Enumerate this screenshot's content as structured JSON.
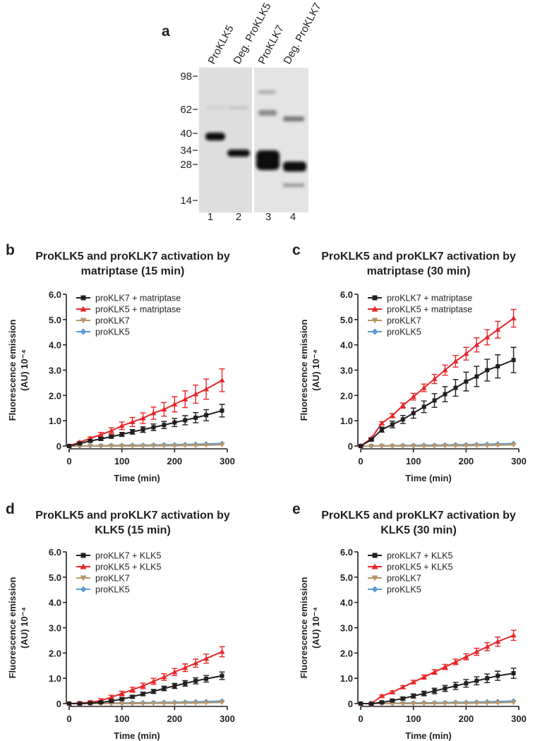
{
  "gel": {
    "panel": "a",
    "lanes": [
      "ProKLK5",
      "Deg. ProKLK5",
      "ProKLK7",
      "Deg. ProKLK7"
    ],
    "markers": [
      "98",
      "62",
      "40",
      "34",
      "28",
      "14"
    ],
    "lane_numbers": [
      "1",
      "2",
      "3",
      "4"
    ]
  },
  "chart_data": [
    {
      "type": "line",
      "panel": "b",
      "title": [
        "ProKLK5 and proKLK7 activation by",
        "matriptase (15 min)"
      ],
      "ylabel": [
        "Fluorescence emission",
        "(AU) 10⁻⁴"
      ],
      "xlabel": "Time (min)",
      "xlim": [
        0,
        300
      ],
      "ylim": [
        0,
        6
      ],
      "xticks": [
        0,
        100,
        200,
        300
      ],
      "yticks": [
        0,
        {
          "value": 1,
          "label": "1.0"
        },
        {
          "value": 2,
          "label": "2.0"
        },
        {
          "value": 3,
          "label": "3.0"
        },
        {
          "value": 4,
          "label": "4.0"
        },
        {
          "value": 5,
          "label": "5.0"
        },
        {
          "value": 6,
          "label": "6.0"
        }
      ],
      "legend": "upper left",
      "x": [
        0,
        20,
        40,
        60,
        80,
        100,
        120,
        140,
        160,
        180,
        200,
        220,
        240,
        260,
        290
      ],
      "series": [
        {
          "name": "proKLK7 + matriptase",
          "color": "#231f20",
          "marker": "square",
          "values": [
            0,
            0.1,
            0.2,
            0.28,
            0.37,
            0.46,
            0.56,
            0.65,
            0.74,
            0.83,
            0.93,
            1.02,
            1.12,
            1.22,
            1.4
          ],
          "errors": [
            0,
            0.02,
            0.03,
            0.05,
            0.06,
            0.08,
            0.09,
            0.11,
            0.13,
            0.14,
            0.16,
            0.18,
            0.2,
            0.22,
            0.25
          ]
        },
        {
          "name": "proKLK5 + matriptase",
          "color": "#e8262a",
          "marker": "triangle",
          "values": [
            0,
            0.15,
            0.3,
            0.45,
            0.6,
            0.8,
            0.95,
            1.1,
            1.3,
            1.45,
            1.65,
            1.85,
            2.05,
            2.25,
            2.6
          ],
          "errors": [
            0,
            0.03,
            0.06,
            0.09,
            0.12,
            0.15,
            0.18,
            0.21,
            0.24,
            0.27,
            0.3,
            0.33,
            0.36,
            0.4,
            0.45
          ]
        },
        {
          "name": "proKLK7",
          "color": "#b8956a",
          "marker": "triangle-down",
          "values": [
            0,
            0,
            0,
            0,
            0,
            0,
            0,
            0,
            0.01,
            0.01,
            0.01,
            0.02,
            0.02,
            0.03,
            0.05
          ]
        },
        {
          "name": "proKLK5",
          "color": "#5b9bd5",
          "marker": "diamond",
          "values": [
            0,
            0,
            0.01,
            0.01,
            0.02,
            0.02,
            0.03,
            0.03,
            0.04,
            0.05,
            0.05,
            0.06,
            0.07,
            0.08,
            0.1
          ]
        }
      ]
    },
    {
      "type": "line",
      "panel": "c",
      "title": [
        "ProKLK5 and proKLK7 activation by",
        "matriptase (30 min)"
      ],
      "ylabel": [
        "Fluorescence emission",
        "(AU) 10⁻⁴"
      ],
      "xlabel": "Time (min)",
      "xlim": [
        0,
        300
      ],
      "ylim": [
        0,
        6
      ],
      "xticks": [
        0,
        100,
        200,
        300
      ],
      "yticks": [
        0,
        {
          "value": 1,
          "label": "1.0"
        },
        {
          "value": 2,
          "label": "2.0"
        },
        {
          "value": 3,
          "label": "3.0"
        },
        {
          "value": 4,
          "label": "4.0"
        },
        {
          "value": 5,
          "label": "5.0"
        },
        {
          "value": 6,
          "label": "6.0"
        }
      ],
      "legend": "upper left",
      "x": [
        0,
        20,
        40,
        60,
        80,
        100,
        120,
        140,
        160,
        180,
        200,
        220,
        240,
        260,
        290
      ],
      "series": [
        {
          "name": "proKLK7 + matriptase",
          "color": "#231f20",
          "marker": "square",
          "values": [
            0,
            0.25,
            0.65,
            0.85,
            1.05,
            1.3,
            1.55,
            1.8,
            2.05,
            2.3,
            2.55,
            2.75,
            3.0,
            3.15,
            3.4
          ],
          "errors": [
            0,
            0.05,
            0.1,
            0.13,
            0.16,
            0.2,
            0.23,
            0.27,
            0.3,
            0.33,
            0.37,
            0.4,
            0.43,
            0.46,
            0.5
          ]
        },
        {
          "name": "proKLK5 + matriptase",
          "color": "#e8262a",
          "marker": "triangle",
          "values": [
            0,
            0.3,
            0.9,
            1.2,
            1.6,
            1.95,
            2.3,
            2.65,
            3.0,
            3.35,
            3.65,
            4.0,
            4.3,
            4.6,
            5.05
          ],
          "errors": [
            0,
            0.03,
            0.06,
            0.08,
            0.1,
            0.13,
            0.15,
            0.18,
            0.2,
            0.23,
            0.25,
            0.28,
            0.3,
            0.33,
            0.35
          ]
        },
        {
          "name": "proKLK7",
          "color": "#b8956a",
          "marker": "triangle-down",
          "values": [
            0,
            0,
            0,
            0,
            0,
            0,
            0,
            0,
            0.01,
            0.01,
            0.01,
            0.02,
            0.02,
            0.03,
            0.05
          ]
        },
        {
          "name": "proKLK5",
          "color": "#5b9bd5",
          "marker": "diamond",
          "values": [
            0,
            0,
            0.01,
            0.01,
            0.02,
            0.02,
            0.03,
            0.03,
            0.04,
            0.05,
            0.05,
            0.06,
            0.07,
            0.08,
            0.1
          ]
        }
      ]
    },
    {
      "type": "line",
      "panel": "d",
      "title": [
        "ProKLK5 and proKLK7 activation by",
        "KLK5 (15 min)"
      ],
      "ylabel": [
        "Fluorescence emission",
        "(AU) 10⁻⁴"
      ],
      "xlabel": "Time (min)",
      "xlim": [
        0,
        300
      ],
      "ylim": [
        0,
        6
      ],
      "xticks": [
        0,
        100,
        200,
        300
      ],
      "yticks": [
        0,
        {
          "value": 1,
          "label": "1.0"
        },
        {
          "value": 2,
          "label": "2.0"
        },
        {
          "value": 3,
          "label": "3.0"
        },
        {
          "value": 4,
          "label": "4.0"
        },
        {
          "value": 5,
          "label": "5.0"
        },
        {
          "value": 6,
          "label": "6.0"
        }
      ],
      "legend": "upper left",
      "x": [
        0,
        20,
        40,
        60,
        80,
        100,
        120,
        140,
        160,
        180,
        200,
        220,
        240,
        260,
        290
      ],
      "series": [
        {
          "name": "proKLK7 + KLK5",
          "color": "#231f20",
          "marker": "square",
          "values": [
            0,
            0,
            0.02,
            0.05,
            0.1,
            0.18,
            0.27,
            0.38,
            0.48,
            0.6,
            0.7,
            0.8,
            0.9,
            0.98,
            1.1
          ],
          "errors": [
            0,
            0.01,
            0.02,
            0.03,
            0.04,
            0.05,
            0.06,
            0.07,
            0.08,
            0.09,
            0.1,
            0.11,
            0.12,
            0.13,
            0.15
          ]
        },
        {
          "name": "proKLK5 + KLK5",
          "color": "#e8262a",
          "marker": "triangle",
          "values": [
            0,
            0.02,
            0.05,
            0.12,
            0.25,
            0.4,
            0.55,
            0.7,
            0.88,
            1.05,
            1.25,
            1.42,
            1.6,
            1.78,
            2.05
          ],
          "errors": [
            0,
            0.05,
            0.06,
            0.07,
            0.08,
            0.09,
            0.1,
            0.11,
            0.12,
            0.13,
            0.14,
            0.15,
            0.16,
            0.18,
            0.2
          ]
        },
        {
          "name": "proKLK7",
          "color": "#b8956a",
          "marker": "triangle-down",
          "values": [
            0,
            0,
            0,
            0,
            0,
            0,
            0,
            0,
            0.01,
            0.01,
            0.01,
            0.02,
            0.02,
            0.03,
            0.05
          ]
        },
        {
          "name": "proKLK5",
          "color": "#5b9bd5",
          "marker": "diamond",
          "values": [
            0,
            0,
            0.01,
            0.01,
            0.02,
            0.02,
            0.03,
            0.03,
            0.04,
            0.05,
            0.05,
            0.06,
            0.07,
            0.08,
            0.1
          ]
        }
      ]
    },
    {
      "type": "line",
      "panel": "e",
      "title": [
        "ProKLK5 and proKLK7 activation by",
        "KLK5 (30 min)"
      ],
      "ylabel": [
        "Fluorescence emission",
        "(AU) 10⁻⁴"
      ],
      "xlabel": "Time (min)",
      "xlim": [
        0,
        300
      ],
      "ylim": [
        0,
        6
      ],
      "xticks": [
        0,
        100,
        200,
        300
      ],
      "yticks": [
        0,
        {
          "value": 1,
          "label": "1.0"
        },
        {
          "value": 2,
          "label": "2.0"
        },
        {
          "value": 3,
          "label": "3.0"
        },
        {
          "value": 4,
          "label": "4.0"
        },
        {
          "value": 5,
          "label": "5.0"
        },
        {
          "value": 6,
          "label": "6.0"
        }
      ],
      "legend": "upper left",
      "x": [
        0,
        20,
        40,
        60,
        80,
        100,
        120,
        140,
        160,
        180,
        200,
        220,
        240,
        260,
        290
      ],
      "series": [
        {
          "name": "proKLK7 + KLK5",
          "color": "#231f20",
          "marker": "square",
          "values": [
            0,
            0,
            0.05,
            0.12,
            0.2,
            0.3,
            0.4,
            0.5,
            0.6,
            0.7,
            0.8,
            0.9,
            1.0,
            1.1,
            1.2
          ],
          "errors": [
            0,
            0.02,
            0.03,
            0.05,
            0.06,
            0.08,
            0.09,
            0.11,
            0.12,
            0.14,
            0.15,
            0.16,
            0.17,
            0.18,
            0.2
          ]
        },
        {
          "name": "proKLK5 + KLK5",
          "color": "#e8262a",
          "marker": "triangle",
          "values": [
            0,
            0,
            0.3,
            0.45,
            0.65,
            0.85,
            1.05,
            1.25,
            1.45,
            1.65,
            1.85,
            2.05,
            2.25,
            2.45,
            2.7
          ],
          "errors": [
            0,
            0.02,
            0.04,
            0.05,
            0.06,
            0.07,
            0.08,
            0.09,
            0.1,
            0.11,
            0.12,
            0.14,
            0.16,
            0.18,
            0.2
          ]
        },
        {
          "name": "proKLK7",
          "color": "#b8956a",
          "marker": "triangle-down",
          "values": [
            0,
            0,
            0,
            0,
            0,
            0,
            0,
            0,
            0.01,
            0.01,
            0.01,
            0.02,
            0.02,
            0.03,
            0.05
          ]
        },
        {
          "name": "proKLK5",
          "color": "#5b9bd5",
          "marker": "diamond",
          "values": [
            0,
            0,
            0.01,
            0.01,
            0.02,
            0.02,
            0.03,
            0.03,
            0.04,
            0.05,
            0.05,
            0.06,
            0.07,
            0.08,
            0.1
          ]
        }
      ]
    }
  ]
}
